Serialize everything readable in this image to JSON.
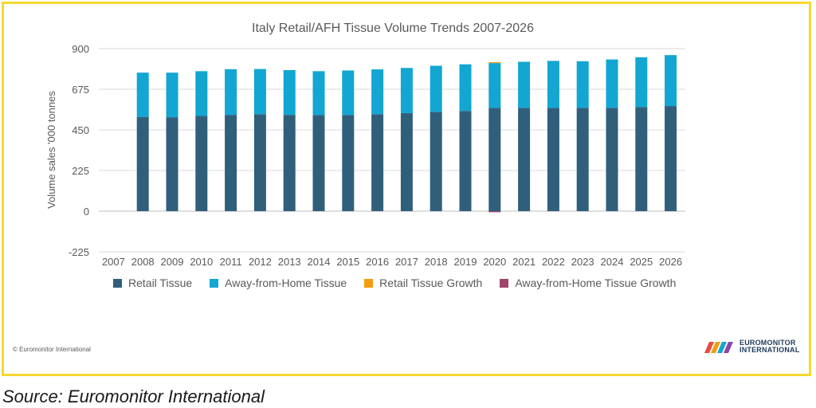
{
  "chart_data": {
    "type": "bar",
    "stacked": true,
    "title": "Italy Retail/AFH Tissue Volume Trends 2007-2026",
    "ylabel": "Volume sales '000 tonnes",
    "xlabel": "",
    "ylim": [
      -225,
      900
    ],
    "yticks": [
      -225,
      0,
      225,
      450,
      675,
      900
    ],
    "ytick_labels": [
      "-225",
      "0",
      "225",
      "450",
      "675",
      "900"
    ],
    "categories": [
      "2007",
      "2008",
      "2009",
      "2010",
      "2011",
      "2012",
      "2013",
      "2014",
      "2015",
      "2016",
      "2017",
      "2018",
      "2019",
      "2020",
      "2021",
      "2022",
      "2023",
      "2024",
      "2025",
      "2026"
    ],
    "grid": true,
    "legend_position": "bottom",
    "series": [
      {
        "name": "Retail Tissue",
        "color": "#305f7c",
        "values": [
          null,
          522,
          520,
          527,
          533,
          537,
          533,
          532,
          532,
          537,
          543,
          550,
          555,
          572,
          572,
          572,
          572,
          572,
          577,
          582
        ]
      },
      {
        "name": "Away-from-Home Tissue",
        "color": "#12a6d2",
        "values": [
          null,
          245,
          247,
          248,
          253,
          250,
          248,
          243,
          247,
          248,
          250,
          255,
          258,
          248,
          255,
          260,
          258,
          268,
          275,
          282
        ]
      },
      {
        "name": "Retail Tissue Growth",
        "color": "#f39c12",
        "values": [
          null,
          0,
          0,
          0,
          0,
          0,
          0,
          0,
          0,
          0,
          0,
          0,
          0,
          5,
          0,
          0,
          0,
          0,
          0,
          0
        ]
      },
      {
        "name": "Away-from-Home Tissue Growth",
        "color": "#a0466e",
        "values": [
          null,
          0,
          0,
          0,
          0,
          0,
          0,
          0,
          0,
          0,
          0,
          0,
          0,
          -6,
          0,
          0,
          0,
          0,
          0,
          0
        ]
      }
    ]
  },
  "footer": {
    "copyright": "© Euromonitor International",
    "logo_line1": "EUROMONITOR",
    "logo_line2": "INTERNATIONAL",
    "source": "Source: Euromonitor International"
  }
}
